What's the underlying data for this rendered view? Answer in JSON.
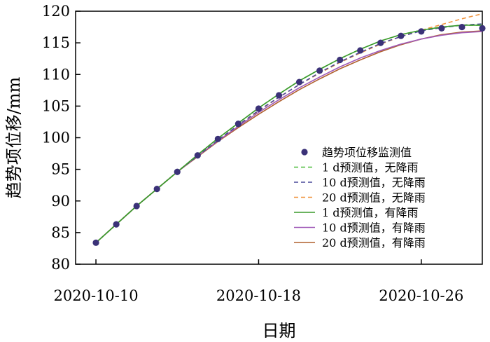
{
  "chart_data": {
    "type": "line",
    "xlabel": "日期",
    "ylabel": "趋势项位移/mm",
    "ylim": [
      80,
      120
    ],
    "yticks": [
      80,
      85,
      90,
      95,
      100,
      105,
      110,
      115,
      120
    ],
    "xlim": [
      "2020-10-09",
      "2020-10-29"
    ],
    "xticks": [
      "2020-10-10",
      "2020-10-18",
      "2020-10-26"
    ],
    "grid": false,
    "legend_position": "right",
    "x": [
      "2020-10-10",
      "2020-10-11",
      "2020-10-12",
      "2020-10-13",
      "2020-10-14",
      "2020-10-15",
      "2020-10-16",
      "2020-10-17",
      "2020-10-18",
      "2020-10-19",
      "2020-10-20",
      "2020-10-21",
      "2020-10-22",
      "2020-10-23",
      "2020-10-24",
      "2020-10-25",
      "2020-10-26",
      "2020-10-27",
      "2020-10-28",
      "2020-10-29"
    ],
    "series": [
      {
        "name": "趋势项位移监测值",
        "style": "marker",
        "color": "#3b3278",
        "values": [
          83.4,
          86.3,
          89.2,
          91.9,
          94.6,
          97.2,
          99.8,
          102.2,
          104.6,
          106.7,
          108.8,
          110.6,
          112.3,
          113.8,
          115.0,
          116.1,
          116.8,
          117.3,
          117.5,
          117.3
        ]
      },
      {
        "name": "1 d预测值，无降雨",
        "style": "dashed",
        "color": "#4dbb3a",
        "values": [
          83.4,
          86.3,
          89.2,
          91.9,
          94.6,
          97.3,
          99.9,
          102.3,
          104.7,
          106.9,
          109.0,
          110.8,
          112.5,
          114.0,
          115.3,
          116.3,
          117.0,
          117.5,
          117.8,
          117.8
        ]
      },
      {
        "name": "10 d预测值，无降雨",
        "style": "dashed",
        "color": "#4a4a9a",
        "values": [
          83.4,
          86.3,
          89.2,
          91.9,
          94.6,
          97.1,
          99.6,
          102.0,
          104.3,
          106.4,
          108.4,
          110.3,
          112.0,
          113.5,
          114.9,
          116.0,
          116.9,
          117.4,
          117.8,
          118.0
        ]
      },
      {
        "name": "20 d预测值，无降雨",
        "style": "dashed",
        "color": "#f0933c",
        "values": [
          83.4,
          86.3,
          89.2,
          91.9,
          94.6,
          97.1,
          99.6,
          102.0,
          104.2,
          106.4,
          108.4,
          110.2,
          111.9,
          113.4,
          114.8,
          116.0,
          117.0,
          117.9,
          118.8,
          119.6
        ]
      },
      {
        "name": "1 d预测值，有降雨",
        "style": "solid",
        "color": "#3a9a2a",
        "values": [
          83.4,
          86.3,
          89.2,
          91.9,
          94.6,
          97.3,
          99.9,
          102.3,
          104.7,
          106.9,
          109.0,
          110.8,
          112.5,
          114.0,
          115.3,
          116.3,
          117.0,
          117.5,
          117.8,
          117.8
        ]
      },
      {
        "name": "10 d预测值，有降雨",
        "style": "solid",
        "color": "#a05ab8",
        "values": [
          83.4,
          86.3,
          89.2,
          91.9,
          94.6,
          97.1,
          99.5,
          101.8,
          104.0,
          106.0,
          107.9,
          109.6,
          111.2,
          112.6,
          113.8,
          114.8,
          115.6,
          116.2,
          116.6,
          116.8
        ]
      },
      {
        "name": "20 d预测值，有降雨",
        "style": "solid",
        "color": "#b0602e",
        "values": [
          83.4,
          86.3,
          89.2,
          91.9,
          94.6,
          97.0,
          99.4,
          101.6,
          103.7,
          105.7,
          107.6,
          109.3,
          110.9,
          112.3,
          113.6,
          114.7,
          115.6,
          116.3,
          116.7,
          116.9
        ]
      }
    ]
  }
}
